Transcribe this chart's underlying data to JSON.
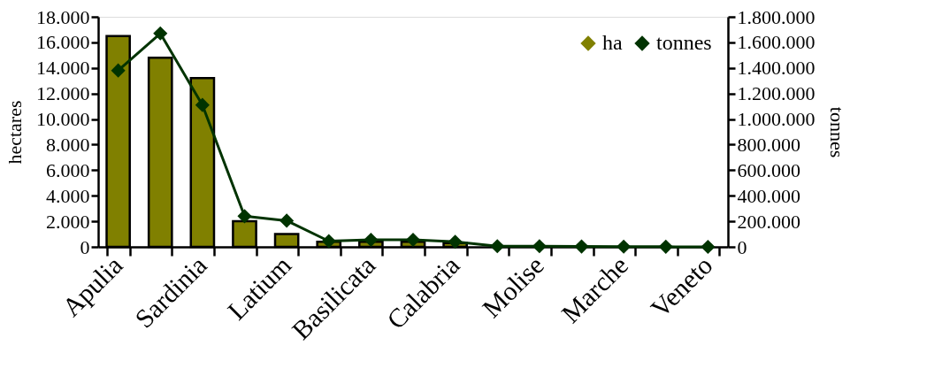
{
  "chart_data": {
    "type": "bar",
    "categories": [
      "Apulia",
      null,
      "Sardinia",
      null,
      "Latium",
      null,
      "Basilicata",
      null,
      "Calabria",
      null,
      "Molise",
      null,
      "Marche",
      null,
      "Veneto"
    ],
    "series": [
      {
        "name": "ha",
        "color": "#808000",
        "values": [
          16500,
          14800,
          13200,
          2000,
          1000,
          400,
          400,
          400,
          300,
          null,
          null,
          null,
          null,
          null,
          null
        ]
      },
      {
        "name": "tonnes",
        "type": "line",
        "axis": "y2",
        "color": "#003300",
        "values": [
          1380000,
          1670000,
          1110000,
          240000,
          205000,
          45000,
          55000,
          55000,
          40000,
          5000,
          5000,
          3000,
          2000,
          1000,
          0
        ]
      }
    ],
    "ylabel": "hectares",
    "y2label": "tonnes",
    "ylim": [
      0,
      18000
    ],
    "yticks": [
      0,
      {
        "value": 2000,
        "label": "2.000"
      },
      {
        "value": 4000,
        "label": "4.000"
      },
      {
        "value": 6000,
        "label": "6.000"
      },
      {
        "value": 8000,
        "label": "8.000"
      },
      {
        "value": 10000,
        "label": "10.000"
      },
      {
        "value": 12000,
        "label": "12.000"
      },
      {
        "value": 14000,
        "label": "14.000"
      },
      {
        "value": 16000,
        "label": "16.000"
      },
      {
        "value": 18000,
        "label": "18.000"
      }
    ],
    "y2lim": [
      0,
      1800000
    ],
    "y2ticks": [
      0,
      {
        "value": 200000,
        "label": "200.000"
      },
      {
        "value": 400000,
        "label": "400.000"
      },
      {
        "value": 600000,
        "label": "600.000"
      },
      {
        "value": 800000,
        "label": "800.000"
      },
      {
        "value": 1000000,
        "label": "1.000.000"
      },
      {
        "value": 1200000,
        "label": "1.200.000"
      },
      {
        "value": 1400000,
        "label": "1.400.000"
      },
      {
        "value": 1600000,
        "label": "1.600.000"
      },
      {
        "value": 1800000,
        "label": "1.800.000"
      }
    ],
    "legend": "top right",
    "marker": "diamond",
    "grid": false
  }
}
